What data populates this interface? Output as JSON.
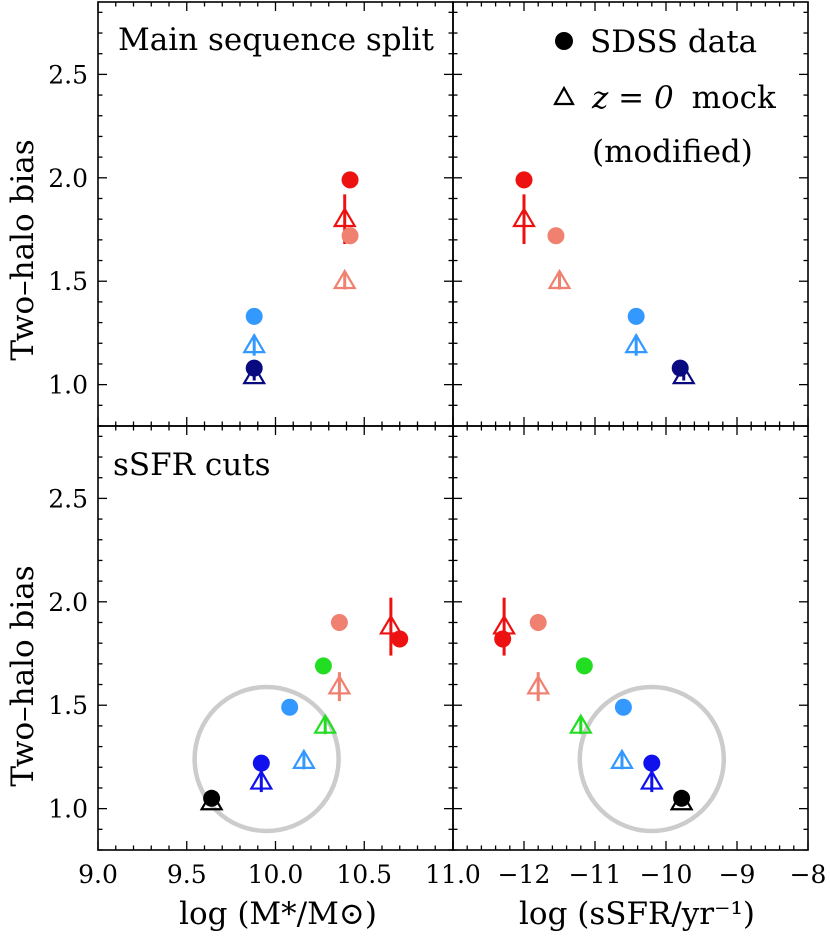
{
  "chart_data": [
    {
      "type": "scatter",
      "panel": "top-left",
      "annotation": "Main sequence split",
      "xlim": [
        9.0,
        11.0
      ],
      "ylim": [
        0.8,
        2.85
      ],
      "ylabel": "Two–halo bias",
      "yticks": [
        "1.0",
        "1.5",
        "2.0",
        "2.5"
      ],
      "series": [
        {
          "name": "SDSS data",
          "marker": "circle",
          "points": [
            {
              "x": 9.88,
              "y": 1.08,
              "yerr": 0.03,
              "color": "#0a0a80"
            },
            {
              "x": 9.88,
              "y": 1.33,
              "yerr": 0.02,
              "color": "#3399ff"
            },
            {
              "x": 10.42,
              "y": 1.72,
              "yerr": 0.03,
              "color": "#f08070"
            },
            {
              "x": 10.42,
              "y": 1.99,
              "yerr": 0.04,
              "color": "#ee1111"
            }
          ]
        },
        {
          "name": "z = 0 mock (modified)",
          "marker": "triangle",
          "points": [
            {
              "x": 9.88,
              "y": 1.04,
              "yerr": 0.02,
              "color": "#0a0a80"
            },
            {
              "x": 9.88,
              "y": 1.19,
              "yerr": 0.05,
              "color": "#3399ff"
            },
            {
              "x": 10.39,
              "y": 1.5,
              "yerr": 0.04,
              "color": "#f08070"
            },
            {
              "x": 10.39,
              "y": 1.8,
              "yerr": 0.12,
              "color": "#ee1111"
            }
          ]
        }
      ]
    },
    {
      "type": "scatter",
      "panel": "top-right",
      "xlim": [
        -13.0,
        -8.0
      ],
      "ylim": [
        0.8,
        2.85
      ],
      "legend": {
        "position": "top-right",
        "entries": [
          {
            "marker": "circle",
            "label": "SDSS data"
          },
          {
            "marker": "triangle",
            "label_math": "z = 0",
            "label_rest": "mock",
            "label_line2": "(modified)"
          }
        ]
      },
      "series": [
        {
          "name": "SDSS data",
          "marker": "circle",
          "points": [
            {
              "x": -12.0,
              "y": 1.99,
              "yerr": 0.04,
              "color": "#ee1111"
            },
            {
              "x": -11.55,
              "y": 1.72,
              "yerr": 0.03,
              "color": "#f08070"
            },
            {
              "x": -10.42,
              "y": 1.33,
              "yerr": 0.02,
              "color": "#3399ff"
            },
            {
              "x": -9.8,
              "y": 1.08,
              "yerr": 0.03,
              "color": "#0a0a80"
            }
          ]
        },
        {
          "name": "z = 0 mock (modified)",
          "marker": "triangle",
          "points": [
            {
              "x": -12.0,
              "y": 1.8,
              "yerr": 0.12,
              "color": "#ee1111"
            },
            {
              "x": -11.5,
              "y": 1.5,
              "yerr": 0.04,
              "color": "#f08070"
            },
            {
              "x": -10.42,
              "y": 1.19,
              "yerr": 0.05,
              "color": "#3399ff"
            },
            {
              "x": -9.75,
              "y": 1.04,
              "yerr": 0.02,
              "color": "#0a0a80"
            }
          ]
        }
      ]
    },
    {
      "type": "scatter",
      "panel": "bottom-left",
      "annotation": "sSFR cuts",
      "xlim": [
        9.0,
        11.0
      ],
      "ylim": [
        0.8,
        2.85
      ],
      "ylabel": "Two–halo bias",
      "yticks": [
        "1.0",
        "1.5",
        "2.0",
        "2.5"
      ],
      "xticks": [
        "9.0",
        "9.5",
        "10.0",
        "10.5",
        "11.0"
      ],
      "xlabel": "log (M*/M⊙)",
      "highlight_circle": {
        "cx": 9.95,
        "cy": 1.24,
        "color": "#cccccc"
      },
      "series": [
        {
          "name": "SDSS data",
          "marker": "circle",
          "points": [
            {
              "x": 9.64,
              "y": 1.05,
              "yerr": 0.03,
              "color": "#000000"
            },
            {
              "x": 9.92,
              "y": 1.22,
              "yerr": 0.03,
              "color": "#1111ee"
            },
            {
              "x": 10.08,
              "y": 1.49,
              "yerr": 0.03,
              "color": "#3399ff"
            },
            {
              "x": 10.27,
              "y": 1.69,
              "yerr": 0.04,
              "color": "#22dd22"
            },
            {
              "x": 10.36,
              "y": 1.9,
              "yerr": 0.04,
              "color": "#f08070"
            },
            {
              "x": 10.7,
              "y": 1.82,
              "yerr": 0.04,
              "color": "#ee1111"
            }
          ]
        },
        {
          "name": "z = 0 mock (modified)",
          "marker": "triangle",
          "points": [
            {
              "x": 9.64,
              "y": 1.03,
              "yerr": 0.02,
              "color": "#000000"
            },
            {
              "x": 9.92,
              "y": 1.13,
              "yerr": 0.05,
              "color": "#1111ee"
            },
            {
              "x": 10.16,
              "y": 1.23,
              "yerr": 0.04,
              "color": "#3399ff"
            },
            {
              "x": 10.28,
              "y": 1.4,
              "yerr": 0.04,
              "color": "#22dd22"
            },
            {
              "x": 10.36,
              "y": 1.59,
              "yerr": 0.07,
              "color": "#f08070"
            },
            {
              "x": 10.65,
              "y": 1.88,
              "yerr": 0.14,
              "color": "#ee1111"
            }
          ]
        }
      ]
    },
    {
      "type": "scatter",
      "panel": "bottom-right",
      "xlim": [
        -13.0,
        -8.0
      ],
      "ylim": [
        0.8,
        2.85
      ],
      "xticks": [
        "−12",
        "−11",
        "−10",
        "−9",
        "−8"
      ],
      "xlabel": "log (sSFR/yr⁻¹)",
      "highlight_circle": {
        "cx": -10.2,
        "cy": 1.24,
        "color": "#cccccc"
      },
      "series": [
        {
          "name": "SDSS data",
          "marker": "circle",
          "points": [
            {
              "x": -12.3,
              "y": 1.82,
              "yerr": 0.04,
              "color": "#ee1111"
            },
            {
              "x": -11.8,
              "y": 1.9,
              "yerr": 0.04,
              "color": "#f08070"
            },
            {
              "x": -11.15,
              "y": 1.69,
              "yerr": 0.04,
              "color": "#22dd22"
            },
            {
              "x": -10.6,
              "y": 1.49,
              "yerr": 0.03,
              "color": "#3399ff"
            },
            {
              "x": -10.2,
              "y": 1.22,
              "yerr": 0.03,
              "color": "#1111ee"
            },
            {
              "x": -9.78,
              "y": 1.05,
              "yerr": 0.03,
              "color": "#000000"
            }
          ]
        },
        {
          "name": "z = 0 mock (modified)",
          "marker": "triangle",
          "points": [
            {
              "x": -12.28,
              "y": 1.88,
              "yerr": 0.14,
              "color": "#ee1111"
            },
            {
              "x": -11.8,
              "y": 1.59,
              "yerr": 0.07,
              "color": "#f08070"
            },
            {
              "x": -11.2,
              "y": 1.4,
              "yerr": 0.04,
              "color": "#22dd22"
            },
            {
              "x": -10.62,
              "y": 1.23,
              "yerr": 0.04,
              "color": "#3399ff"
            },
            {
              "x": -10.2,
              "y": 1.13,
              "yerr": 0.05,
              "color": "#1111ee"
            },
            {
              "x": -9.78,
              "y": 1.03,
              "yerr": 0.02,
              "color": "#000000"
            }
          ]
        }
      ]
    }
  ]
}
